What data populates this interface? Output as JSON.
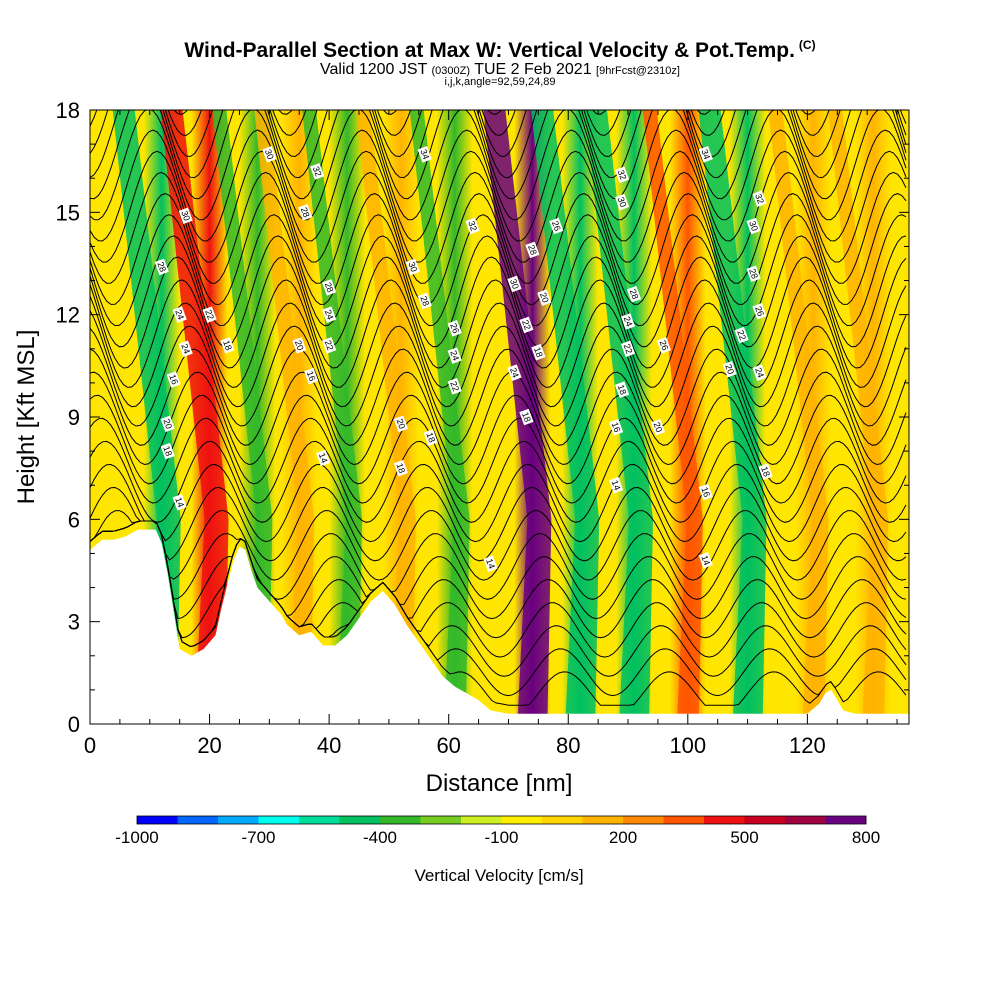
{
  "header": {
    "title": "Wind-Parallel Section at Max W: Vertical Velocity & Pot.Temp.",
    "copyright": "(C)",
    "valid_main": "Valid 1200 JST",
    "valid_utc": "(0300Z)",
    "valid_date": "TUE 2 Feb 2021",
    "forecast": "[9hrFcst@2310z]",
    "indices": "i,j,k,angle=92,59,24,89"
  },
  "chart_data": {
    "type": "heatmap",
    "xlabel": "Distance [nm]",
    "ylabel": "Height [Kft MSL]",
    "xlim": [
      0,
      137
    ],
    "ylim": [
      0,
      18
    ],
    "x_ticks": [
      "0",
      "20",
      "40",
      "60",
      "80",
      "100",
      "120"
    ],
    "y_ticks": [
      "0",
      "3",
      "6",
      "9",
      "12",
      "15",
      "18"
    ],
    "colorbar": {
      "label": "Vertical Velocity [cm/s]",
      "tick_labels": [
        "-1000",
        "-700",
        "-400",
        "-100",
        "200",
        "500",
        "800"
      ],
      "colors": [
        "#0000ff",
        "#0066ff",
        "#00aaff",
        "#00ffee",
        "#00dd99",
        "#00c060",
        "#33b82a",
        "#77cc22",
        "#ccee22",
        "#ffee00",
        "#ffd500",
        "#ffb300",
        "#ff8800",
        "#ff5500",
        "#ee1111",
        "#c80022",
        "#a00040",
        "#6a0080"
      ]
    },
    "terrain_kft": [
      [
        0,
        5.1
      ],
      [
        2,
        5.4
      ],
      [
        4,
        5.4
      ],
      [
        6,
        5.5
      ],
      [
        8,
        5.7
      ],
      [
        10,
        5.7
      ],
      [
        11,
        5.7
      ],
      [
        12,
        5.3
      ],
      [
        13,
        4.4
      ],
      [
        14,
        3.3
      ],
      [
        15,
        2.2
      ],
      [
        16,
        2.1
      ],
      [
        17,
        2.0
      ],
      [
        19,
        2.2
      ],
      [
        21,
        2.6
      ],
      [
        22,
        3.4
      ],
      [
        23,
        4.1
      ],
      [
        24,
        4.8
      ],
      [
        25,
        5.2
      ],
      [
        26,
        5.1
      ],
      [
        27,
        4.5
      ],
      [
        28,
        4.0
      ],
      [
        30,
        3.6
      ],
      [
        32,
        3.2
      ],
      [
        33,
        2.9
      ],
      [
        35,
        2.6
      ],
      [
        37,
        2.7
      ],
      [
        39,
        2.3
      ],
      [
        41,
        2.3
      ],
      [
        43,
        2.6
      ],
      [
        45,
        3.1
      ],
      [
        47,
        3.6
      ],
      [
        49,
        3.9
      ],
      [
        51,
        3.5
      ],
      [
        53,
        2.9
      ],
      [
        55,
        2.4
      ],
      [
        57,
        1.9
      ],
      [
        59,
        1.4
      ],
      [
        61,
        1.1
      ],
      [
        63,
        0.9
      ],
      [
        65,
        0.7
      ],
      [
        67,
        0.4
      ],
      [
        70,
        0.3
      ],
      [
        75,
        0.3
      ],
      [
        80,
        0.3
      ],
      [
        90,
        0.3
      ],
      [
        100,
        0.3
      ],
      [
        110,
        0.3
      ],
      [
        120,
        0.3
      ],
      [
        122,
        0.6
      ],
      [
        123,
        0.9
      ],
      [
        124,
        1.0
      ],
      [
        125,
        0.7
      ],
      [
        126,
        0.4
      ],
      [
        128,
        0.3
      ],
      [
        137,
        0.3
      ]
    ],
    "velocity_bands": [
      {
        "x": 12,
        "w_cms": -450
      },
      {
        "x": 20,
        "w_cms": 480
      },
      {
        "x": 28,
        "w_cms": -330
      },
      {
        "x": 35,
        "w_cms": 190
      },
      {
        "x": 43,
        "w_cms": -380
      },
      {
        "x": 52,
        "w_cms": 160
      },
      {
        "x": 61,
        "w_cms": -370
      },
      {
        "x": 74,
        "w_cms": 720
      },
      {
        "x": 82,
        "w_cms": -420
      },
      {
        "x": 91,
        "w_cms": -470
      },
      {
        "x": 100,
        "w_cms": 330
      },
      {
        "x": 110,
        "w_cms": -430
      },
      {
        "x": 121,
        "w_cms": 150
      },
      {
        "x": 131,
        "w_cms": 120
      }
    ],
    "isentrope_labels": [
      {
        "x": 14,
        "y": 10.1,
        "text": "16"
      },
      {
        "x": 12,
        "y": 13.4,
        "text": "28"
      },
      {
        "x": 16,
        "y": 14.9,
        "text": "30"
      },
      {
        "x": 15,
        "y": 12.0,
        "text": "24"
      },
      {
        "x": 16,
        "y": 11.0,
        "text": "24"
      },
      {
        "x": 20,
        "y": 12.0,
        "text": "22"
      },
      {
        "x": 23,
        "y": 11.1,
        "text": "18"
      },
      {
        "x": 13,
        "y": 8.8,
        "text": "20"
      },
      {
        "x": 13,
        "y": 8.0,
        "text": "18"
      },
      {
        "x": 15,
        "y": 6.5,
        "text": "14"
      },
      {
        "x": 30,
        "y": 16.7,
        "text": "30"
      },
      {
        "x": 38,
        "y": 16.2,
        "text": "32"
      },
      {
        "x": 56,
        "y": 16.7,
        "text": "34"
      },
      {
        "x": 36,
        "y": 15.0,
        "text": "28"
      },
      {
        "x": 40,
        "y": 12.8,
        "text": "28"
      },
      {
        "x": 40,
        "y": 12.0,
        "text": "24"
      },
      {
        "x": 35,
        "y": 11.1,
        "text": "20"
      },
      {
        "x": 40,
        "y": 11.1,
        "text": "22"
      },
      {
        "x": 37,
        "y": 10.2,
        "text": "16"
      },
      {
        "x": 39,
        "y": 7.8,
        "text": "14"
      },
      {
        "x": 54,
        "y": 13.4,
        "text": "30"
      },
      {
        "x": 56,
        "y": 12.4,
        "text": "28"
      },
      {
        "x": 61,
        "y": 11.6,
        "text": "26"
      },
      {
        "x": 61,
        "y": 10.8,
        "text": "24"
      },
      {
        "x": 61,
        "y": 9.9,
        "text": "22"
      },
      {
        "x": 52,
        "y": 8.8,
        "text": "20"
      },
      {
        "x": 57,
        "y": 8.4,
        "text": "18"
      },
      {
        "x": 52,
        "y": 7.5,
        "text": "18"
      },
      {
        "x": 64,
        "y": 14.6,
        "text": "32"
      },
      {
        "x": 67,
        "y": 4.7,
        "text": "14"
      },
      {
        "x": 74,
        "y": 13.9,
        "text": "28"
      },
      {
        "x": 71,
        "y": 12.9,
        "text": "30"
      },
      {
        "x": 78,
        "y": 14.6,
        "text": "26"
      },
      {
        "x": 76,
        "y": 12.5,
        "text": "20"
      },
      {
        "x": 73,
        "y": 11.7,
        "text": "22"
      },
      {
        "x": 75,
        "y": 10.9,
        "text": "18"
      },
      {
        "x": 71,
        "y": 10.3,
        "text": "24"
      },
      {
        "x": 73,
        "y": 9.0,
        "text": "18"
      },
      {
        "x": 89,
        "y": 16.1,
        "text": "32"
      },
      {
        "x": 89,
        "y": 15.3,
        "text": "30"
      },
      {
        "x": 91,
        "y": 12.6,
        "text": "28"
      },
      {
        "x": 90,
        "y": 11.8,
        "text": "24"
      },
      {
        "x": 90,
        "y": 11.0,
        "text": "22"
      },
      {
        "x": 89,
        "y": 9.8,
        "text": "18"
      },
      {
        "x": 88,
        "y": 8.7,
        "text": "16"
      },
      {
        "x": 96,
        "y": 11.1,
        "text": "26"
      },
      {
        "x": 95,
        "y": 8.7,
        "text": "20"
      },
      {
        "x": 88,
        "y": 7.0,
        "text": "14"
      },
      {
        "x": 103,
        "y": 16.7,
        "text": "34"
      },
      {
        "x": 112,
        "y": 15.4,
        "text": "32"
      },
      {
        "x": 111,
        "y": 14.6,
        "text": "30"
      },
      {
        "x": 111,
        "y": 13.2,
        "text": "28"
      },
      {
        "x": 112,
        "y": 12.1,
        "text": "26"
      },
      {
        "x": 109,
        "y": 11.4,
        "text": "22"
      },
      {
        "x": 107,
        "y": 10.4,
        "text": "20"
      },
      {
        "x": 112,
        "y": 10.3,
        "text": "24"
      },
      {
        "x": 113,
        "y": 7.4,
        "text": "18"
      },
      {
        "x": 103,
        "y": 6.8,
        "text": "16"
      },
      {
        "x": 103,
        "y": 4.8,
        "text": "14"
      }
    ]
  }
}
